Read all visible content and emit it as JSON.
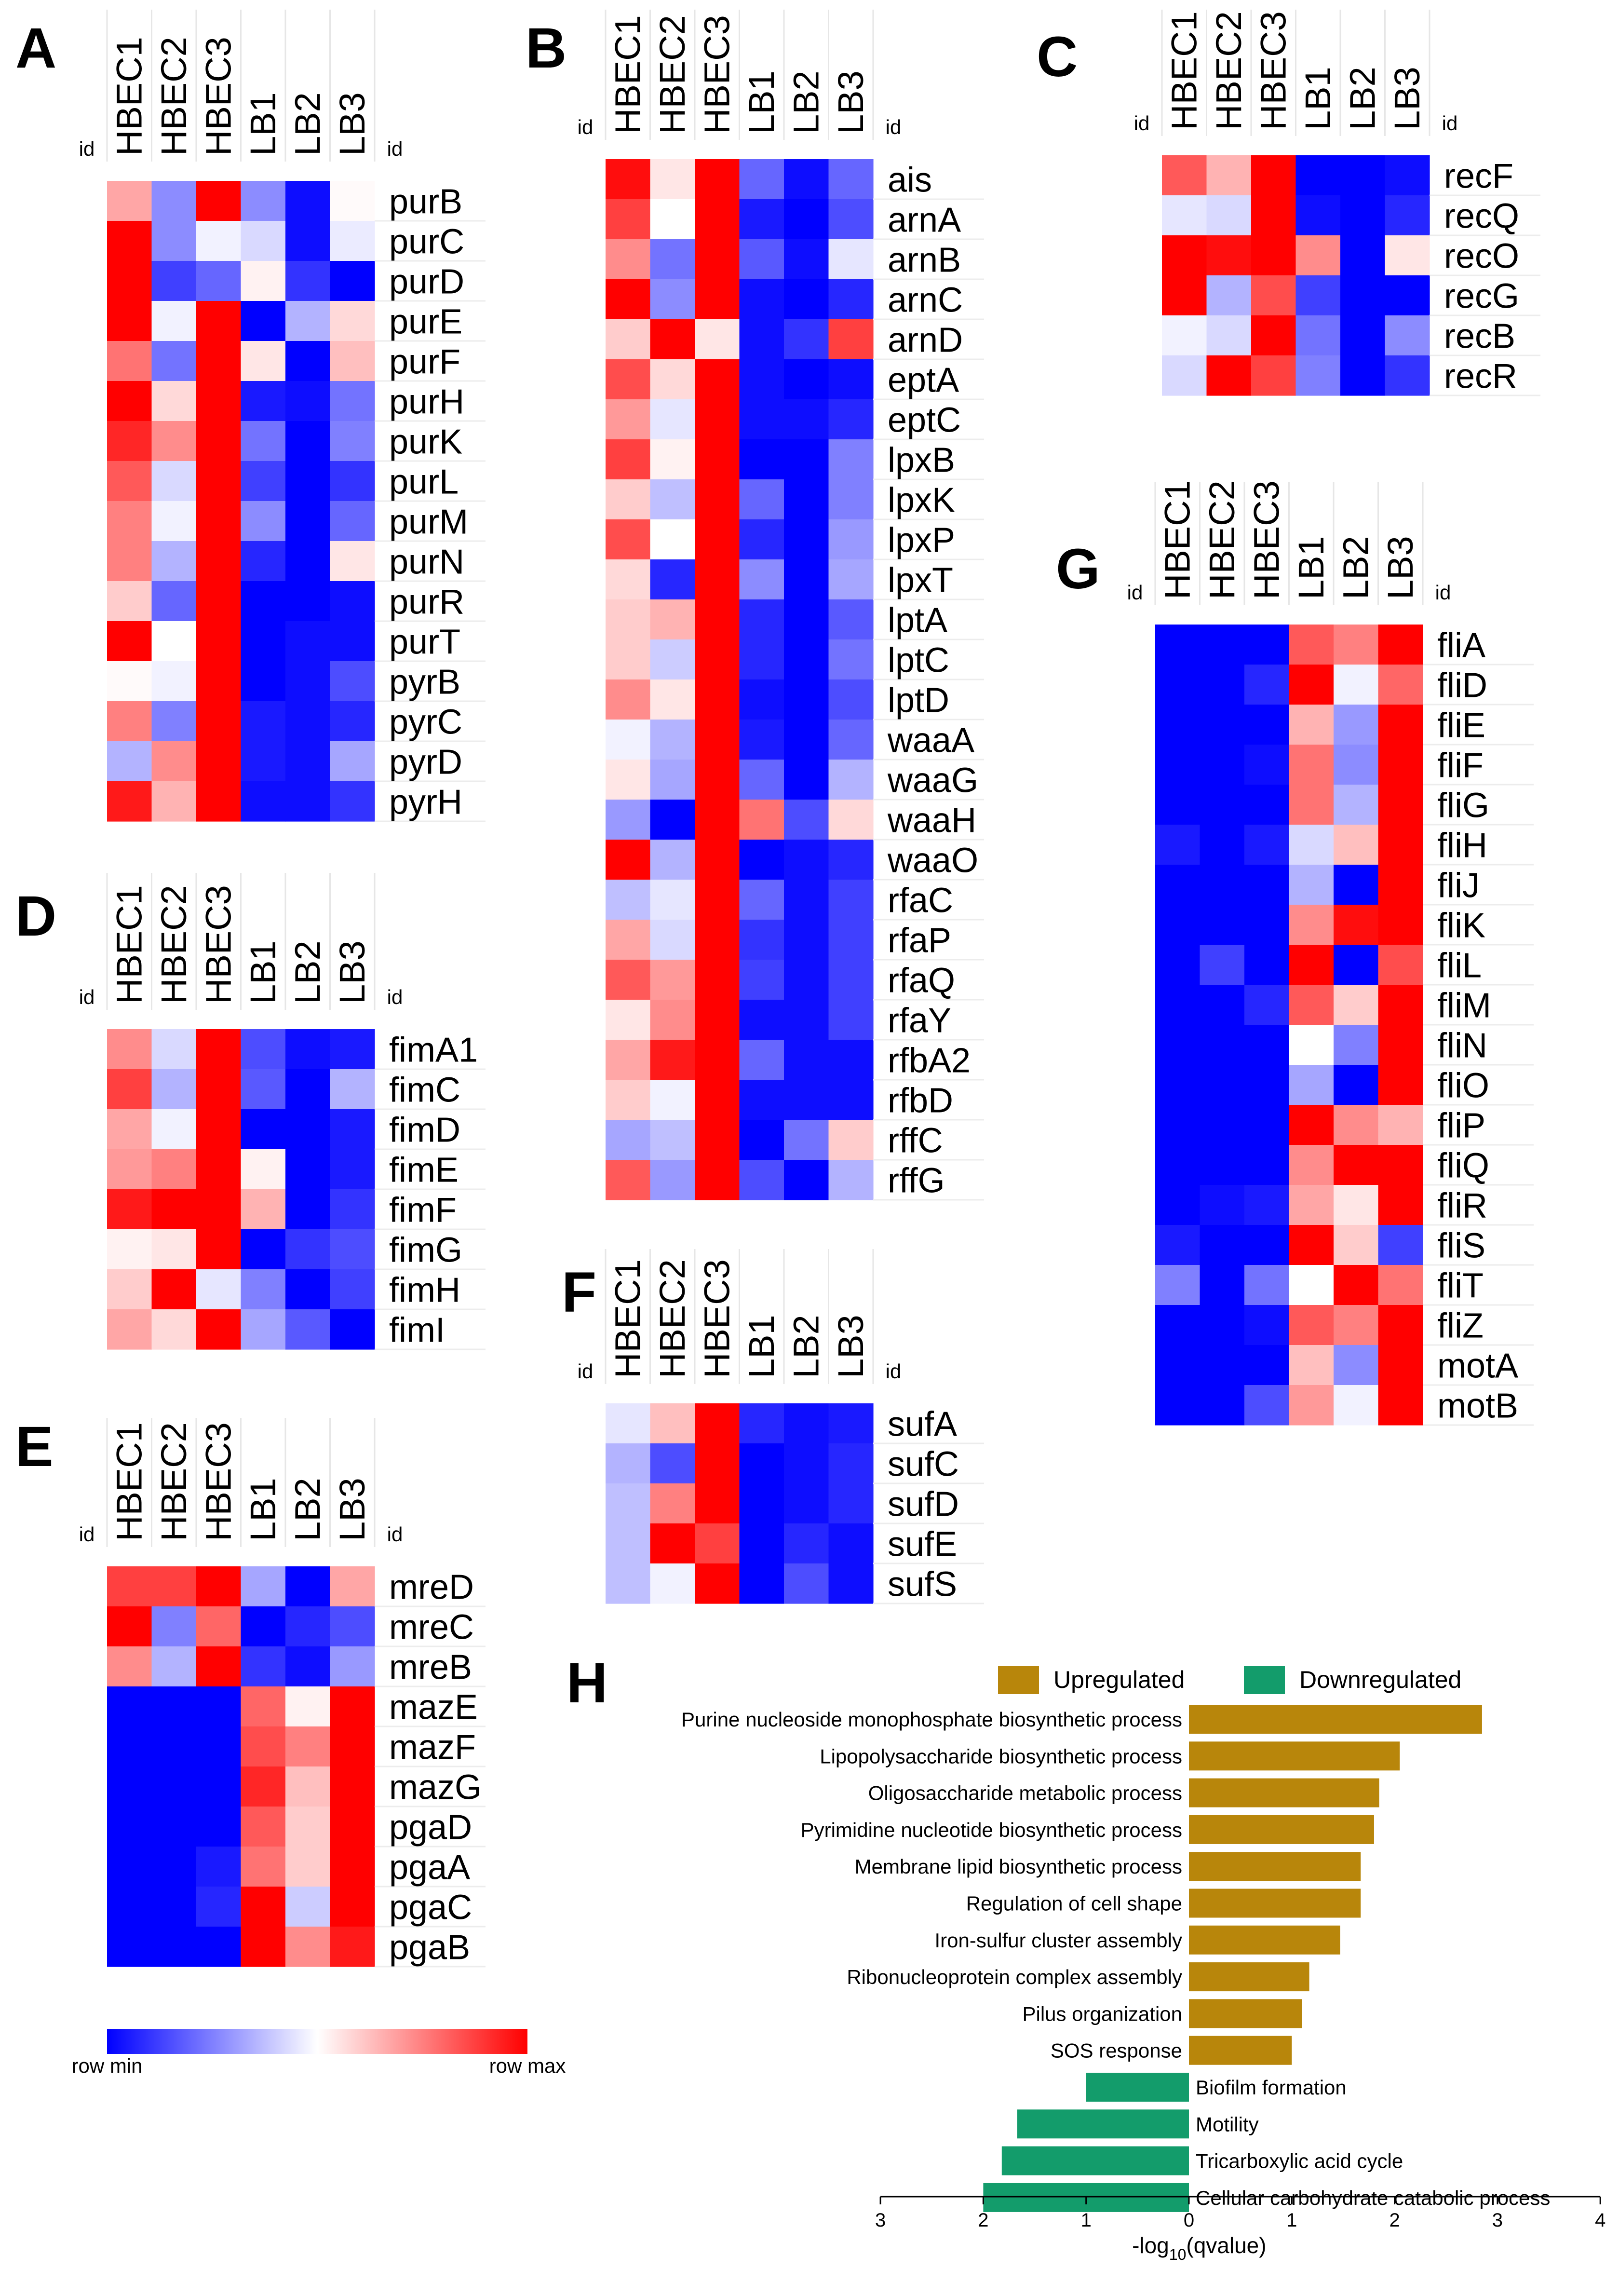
{
  "figure": {
    "id_label": "id",
    "legend": {
      "min_label": "row min",
      "max_label": "row max",
      "colors": {
        "low": "#0000ff",
        "mid": "#ffffff",
        "high": "#ff0000"
      }
    }
  },
  "chart_data": [
    {
      "type": "heatmap",
      "panel": "A",
      "columns": [
        "HBEC1",
        "HBEC2",
        "HBEC3",
        "LB1",
        "LB2",
        "LB3"
      ],
      "rows": [
        "purB",
        "purC",
        "purD",
        "purE",
        "purF",
        "purH",
        "purK",
        "purL",
        "purM",
        "purN",
        "purR",
        "purT",
        "pyrB",
        "pyrC",
        "pyrD",
        "pyrH"
      ],
      "values": [
        [
          0.35,
          -0.45,
          1.0,
          -0.45,
          -0.95,
          0.02
        ],
        [
          1.0,
          -0.45,
          -0.05,
          -0.15,
          -0.95,
          -0.08
        ],
        [
          1.0,
          -0.75,
          -0.6,
          0.05,
          -0.8,
          -1.0
        ],
        [
          1.0,
          -0.05,
          1.0,
          -1.0,
          -0.3,
          0.15
        ],
        [
          0.55,
          -0.55,
          1.0,
          0.1,
          -1.0,
          0.25
        ],
        [
          1.0,
          0.15,
          1.0,
          -0.9,
          -0.95,
          -0.55
        ],
        [
          0.85,
          0.45,
          1.0,
          -0.55,
          -1.0,
          -0.5
        ],
        [
          0.65,
          -0.15,
          1.0,
          -0.75,
          -1.0,
          -0.8
        ],
        [
          0.5,
          -0.05,
          1.0,
          -0.45,
          -1.0,
          -0.6
        ],
        [
          0.5,
          -0.3,
          1.0,
          -0.85,
          -1.0,
          0.1
        ],
        [
          0.2,
          -0.6,
          1.0,
          -1.0,
          -1.0,
          -0.95
        ],
        [
          1.0,
          0.0,
          1.0,
          -1.0,
          -0.95,
          -0.95
        ],
        [
          0.02,
          -0.05,
          1.0,
          -1.0,
          -0.95,
          -0.7
        ],
        [
          0.5,
          -0.5,
          1.0,
          -0.9,
          -0.95,
          -0.85
        ],
        [
          -0.3,
          0.45,
          1.0,
          -0.9,
          -0.95,
          -0.35
        ],
        [
          0.9,
          0.3,
          1.0,
          -0.95,
          -0.95,
          -0.8
        ]
      ]
    },
    {
      "type": "heatmap",
      "panel": "B",
      "columns": [
        "HBEC1",
        "HBEC2",
        "HBEC3",
        "LB1",
        "LB2",
        "LB3"
      ],
      "rows": [
        "ais",
        "arnA",
        "arnB",
        "arnC",
        "arnD",
        "eptA",
        "eptC",
        "lpxB",
        "lpxK",
        "lpxP",
        "lpxT",
        "lptA",
        "lptC",
        "lptD",
        "waaA",
        "waaG",
        "waaH",
        "waaO",
        "rfaC",
        "rfaP",
        "rfaQ",
        "rfaY",
        "rfbA2",
        "rfbD",
        "rffC",
        "rffG"
      ],
      "values": [
        [
          0.95,
          0.1,
          1.0,
          -0.6,
          -0.95,
          -0.6
        ],
        [
          0.75,
          0.0,
          1.0,
          -0.9,
          -1.0,
          -0.7
        ],
        [
          0.45,
          -0.55,
          1.0,
          -0.65,
          -0.95,
          -0.1
        ],
        [
          1.0,
          -0.45,
          1.0,
          -0.95,
          -1.0,
          -0.85
        ],
        [
          0.2,
          1.0,
          0.1,
          -0.95,
          -0.8,
          0.75
        ],
        [
          0.7,
          0.15,
          1.0,
          -0.95,
          -1.0,
          -0.95
        ],
        [
          0.4,
          -0.1,
          1.0,
          -0.95,
          -0.95,
          -0.85
        ],
        [
          0.75,
          0.05,
          1.0,
          -1.0,
          -1.0,
          -0.5
        ],
        [
          0.2,
          -0.25,
          1.0,
          -0.6,
          -1.0,
          -0.5
        ],
        [
          0.7,
          0.0,
          1.0,
          -0.85,
          -1.0,
          -0.4
        ],
        [
          0.15,
          -0.85,
          1.0,
          -0.45,
          -1.0,
          -0.35
        ],
        [
          0.2,
          0.3,
          1.0,
          -0.85,
          -1.0,
          -0.65
        ],
        [
          0.2,
          -0.2,
          1.0,
          -0.85,
          -1.0,
          -0.55
        ],
        [
          0.45,
          0.1,
          1.0,
          -0.95,
          -1.0,
          -0.7
        ],
        [
          -0.05,
          -0.3,
          1.0,
          -0.9,
          -1.0,
          -0.6
        ],
        [
          0.1,
          -0.35,
          1.0,
          -0.6,
          -1.0,
          -0.3
        ],
        [
          -0.4,
          -1.0,
          1.0,
          0.55,
          -0.7,
          0.15
        ],
        [
          1.0,
          -0.3,
          1.0,
          -1.0,
          -0.95,
          -0.85
        ],
        [
          -0.25,
          -0.1,
          1.0,
          -0.6,
          -0.95,
          -0.75
        ],
        [
          0.35,
          -0.15,
          1.0,
          -0.8,
          -0.95,
          -0.75
        ],
        [
          0.65,
          0.4,
          1.0,
          -0.75,
          -0.95,
          -0.75
        ],
        [
          0.1,
          0.45,
          1.0,
          -0.95,
          -0.95,
          -0.75
        ],
        [
          0.35,
          0.9,
          1.0,
          -0.6,
          -0.95,
          -0.95
        ],
        [
          0.2,
          -0.05,
          1.0,
          -0.95,
          -0.95,
          -0.95
        ],
        [
          -0.35,
          -0.25,
          1.0,
          -1.0,
          -0.55,
          0.2
        ],
        [
          0.65,
          -0.4,
          1.0,
          -0.7,
          -1.0,
          -0.3
        ]
      ]
    },
    {
      "type": "heatmap",
      "panel": "C",
      "columns": [
        "HBEC1",
        "HBEC2",
        "HBEC3",
        "LB1",
        "LB2",
        "LB3"
      ],
      "rows": [
        "recF",
        "recQ",
        "recO",
        "recG",
        "recB",
        "recR"
      ],
      "values": [
        [
          0.65,
          0.3,
          1.0,
          -1.0,
          -1.0,
          -0.95
        ],
        [
          -0.1,
          -0.15,
          1.0,
          -0.95,
          -1.0,
          -0.85
        ],
        [
          1.0,
          0.95,
          1.0,
          0.45,
          -1.0,
          0.1
        ],
        [
          1.0,
          -0.3,
          0.7,
          -0.75,
          -1.0,
          -1.0
        ],
        [
          -0.05,
          -0.15,
          1.0,
          -0.55,
          -1.0,
          -0.45
        ],
        [
          -0.15,
          1.0,
          0.75,
          -0.5,
          -1.0,
          -0.8
        ]
      ]
    },
    {
      "type": "heatmap",
      "panel": "D",
      "columns": [
        "HBEC1",
        "HBEC2",
        "HBEC3",
        "LB1",
        "LB2",
        "LB3"
      ],
      "rows": [
        "fimA1",
        "fimC",
        "fimD",
        "fimE",
        "fimF",
        "fimG",
        "fimH",
        "fimI"
      ],
      "values": [
        [
          0.45,
          -0.15,
          1.0,
          -0.7,
          -0.95,
          -0.9
        ],
        [
          0.75,
          -0.3,
          1.0,
          -0.65,
          -1.0,
          -0.3
        ],
        [
          0.35,
          -0.05,
          1.0,
          -1.0,
          -1.0,
          -0.9
        ],
        [
          0.4,
          0.5,
          1.0,
          0.05,
          -1.0,
          -0.9
        ],
        [
          0.9,
          1.0,
          1.0,
          0.3,
          -1.0,
          -0.8
        ],
        [
          0.05,
          0.1,
          1.0,
          -1.0,
          -0.8,
          -0.7
        ],
        [
          0.2,
          1.0,
          -0.1,
          -0.5,
          -1.0,
          -0.75
        ],
        [
          0.35,
          0.15,
          1.0,
          -0.35,
          -0.65,
          -1.0
        ]
      ]
    },
    {
      "type": "heatmap",
      "panel": "E",
      "columns": [
        "HBEC1",
        "HBEC2",
        "HBEC3",
        "LB1",
        "LB2",
        "LB3"
      ],
      "rows": [
        "mreD",
        "mreC",
        "mreB",
        "mazE",
        "mazF",
        "mazG",
        "pgaD",
        "pgaA",
        "pgaC",
        "pgaB"
      ],
      "values": [
        [
          0.75,
          0.75,
          1.0,
          -0.35,
          -1.0,
          0.35
        ],
        [
          1.0,
          -0.5,
          0.6,
          -1.0,
          -0.85,
          -0.7
        ],
        [
          0.45,
          -0.3,
          1.0,
          -0.8,
          -0.95,
          -0.4
        ],
        [
          -1.0,
          -1.0,
          -1.0,
          0.6,
          0.05,
          1.0
        ],
        [
          -1.0,
          -1.0,
          -1.0,
          0.7,
          0.5,
          1.0
        ],
        [
          -1.0,
          -1.0,
          -1.0,
          0.85,
          0.25,
          1.0
        ],
        [
          -1.0,
          -1.0,
          -1.0,
          0.65,
          0.2,
          1.0
        ],
        [
          -1.0,
          -1.0,
          -0.9,
          0.55,
          0.2,
          1.0
        ],
        [
          -1.0,
          -1.0,
          -0.85,
          1.0,
          -0.2,
          1.0
        ],
        [
          -1.0,
          -1.0,
          -1.0,
          1.0,
          0.45,
          0.9
        ]
      ]
    },
    {
      "type": "heatmap",
      "panel": "F",
      "columns": [
        "HBEC1",
        "HBEC2",
        "HBEC3",
        "LB1",
        "LB2",
        "LB3"
      ],
      "rows": [
        "sufA",
        "sufC",
        "sufD",
        "sufE",
        "sufS"
      ],
      "values": [
        [
          -0.1,
          0.25,
          1.0,
          -0.85,
          -0.95,
          -0.9
        ],
        [
          -0.3,
          -0.7,
          1.0,
          -1.0,
          -0.95,
          -0.85
        ],
        [
          -0.25,
          0.5,
          1.0,
          -1.0,
          -0.95,
          -0.85
        ],
        [
          -0.25,
          1.0,
          0.75,
          -1.0,
          -0.85,
          -0.95
        ],
        [
          -0.25,
          -0.05,
          1.0,
          -1.0,
          -0.7,
          -0.95
        ]
      ]
    },
    {
      "type": "heatmap",
      "panel": "G",
      "columns": [
        "HBEC1",
        "HBEC2",
        "HBEC3",
        "LB1",
        "LB2",
        "LB3"
      ],
      "rows": [
        "fliA",
        "fliD",
        "fliE",
        "fliF",
        "fliG",
        "fliH",
        "fliJ",
        "fliK",
        "fliL",
        "fliM",
        "fliN",
        "fliO",
        "fliP",
        "fliQ",
        "fliR",
        "fliS",
        "fliT",
        "fliZ",
        "motA",
        "motB"
      ],
      "values": [
        [
          -1.0,
          -1.0,
          -1.0,
          0.65,
          0.5,
          1.0
        ],
        [
          -1.0,
          -1.0,
          -0.85,
          1.0,
          -0.05,
          0.6
        ],
        [
          -1.0,
          -1.0,
          -1.0,
          0.3,
          -0.4,
          1.0
        ],
        [
          -1.0,
          -1.0,
          -0.95,
          0.55,
          -0.45,
          1.0
        ],
        [
          -1.0,
          -1.0,
          -1.0,
          0.55,
          -0.3,
          1.0
        ],
        [
          -0.9,
          -1.0,
          -0.9,
          -0.15,
          0.25,
          1.0
        ],
        [
          -1.0,
          -1.0,
          -1.0,
          -0.3,
          -1.0,
          1.0
        ],
        [
          -1.0,
          -1.0,
          -1.0,
          0.45,
          0.95,
          1.0
        ],
        [
          -1.0,
          -0.75,
          -1.0,
          1.0,
          -1.0,
          0.7
        ],
        [
          -1.0,
          -1.0,
          -0.85,
          0.65,
          0.2,
          1.0
        ],
        [
          -1.0,
          -1.0,
          -1.0,
          0.0,
          -0.5,
          1.0
        ],
        [
          -1.0,
          -1.0,
          -1.0,
          -0.35,
          -1.0,
          1.0
        ],
        [
          -1.0,
          -1.0,
          -1.0,
          1.0,
          0.45,
          0.3
        ],
        [
          -1.0,
          -1.0,
          -1.0,
          0.45,
          1.0,
          1.0
        ],
        [
          -1.0,
          -0.95,
          -0.9,
          0.35,
          0.1,
          1.0
        ],
        [
          -0.9,
          -1.0,
          -1.0,
          1.0,
          0.2,
          -0.75
        ],
        [
          -0.5,
          -1.0,
          -0.55,
          0.0,
          1.0,
          0.55
        ],
        [
          -1.0,
          -1.0,
          -0.95,
          0.65,
          0.5,
          1.0
        ],
        [
          -1.0,
          -1.0,
          -1.0,
          0.25,
          -0.45,
          1.0
        ],
        [
          -1.0,
          -1.0,
          -0.7,
          0.4,
          -0.05,
          1.0
        ]
      ]
    },
    {
      "type": "bar",
      "panel": "H",
      "orientation": "horizontal",
      "legend": [
        {
          "name": "Upregulated",
          "color": "#b8860b"
        },
        {
          "name": "Downregulated",
          "color": "#139c6b"
        }
      ],
      "categories": [
        "Purine nucleoside monophosphate biosynthetic process",
        "Lipopolysaccharide biosynthetic process",
        "Oligosaccharide metabolic process",
        "Pyrimidine nucleotide biosynthetic process",
        "Membrane lipid biosynthetic process",
        "Regulation of cell shape",
        "Iron-sulfur cluster assembly",
        "Ribonucleoprotein complex assembly",
        "Pilus organization",
        "SOS response",
        "Biofilm formation",
        "Motility",
        "Tricarboxylic acid cycle",
        "Cellular carbohydrate catabolic process"
      ],
      "values": [
        2.85,
        2.05,
        1.85,
        1.8,
        1.67,
        1.67,
        1.47,
        1.17,
        1.1,
        1.0,
        -1.0,
        -1.67,
        -1.82,
        -2.0
      ],
      "groups": [
        "Upregulated",
        "Upregulated",
        "Upregulated",
        "Upregulated",
        "Upregulated",
        "Upregulated",
        "Upregulated",
        "Upregulated",
        "Upregulated",
        "Upregulated",
        "Downregulated",
        "Downregulated",
        "Downregulated",
        "Downregulated"
      ],
      "xlim": [
        -3,
        4
      ],
      "xticks": [
        "3",
        "2",
        "1",
        "0",
        "1",
        "2",
        "3",
        "4"
      ],
      "xlabel": "-log10(qvalue)",
      "xlabel_parts": {
        "prefix": "-log",
        "sub": "10",
        "suffix": "(qvalue)"
      }
    }
  ]
}
